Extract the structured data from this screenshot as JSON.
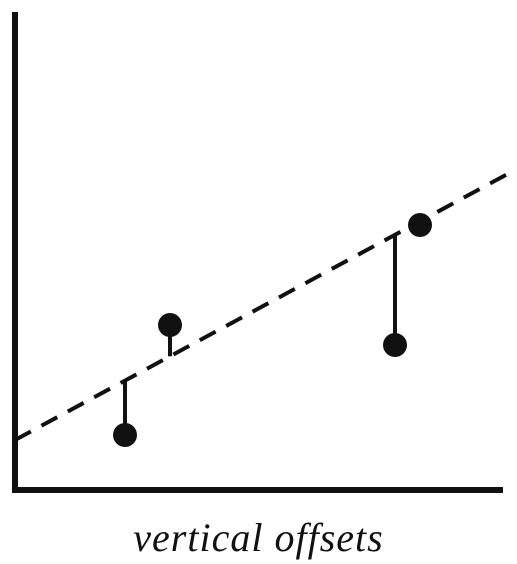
{
  "caption": "vertical offsets",
  "colors": {
    "ink": "#111111",
    "background": "#ffffff"
  },
  "chart_data": {
    "type": "scatter",
    "title": "",
    "xlabel": "",
    "ylabel": "",
    "grid": false,
    "axis_ticks": false,
    "fit_line": {
      "style": "dashed",
      "slope": 0.54,
      "intercept": 1.0
    },
    "points": [
      {
        "x": 2.2,
        "y": 1.1
      },
      {
        "x": 3.1,
        "y": 3.3
      },
      {
        "x": 7.6,
        "y": 2.9
      },
      {
        "x": 8.1,
        "y": 5.3
      }
    ],
    "offsets": "vertical"
  }
}
